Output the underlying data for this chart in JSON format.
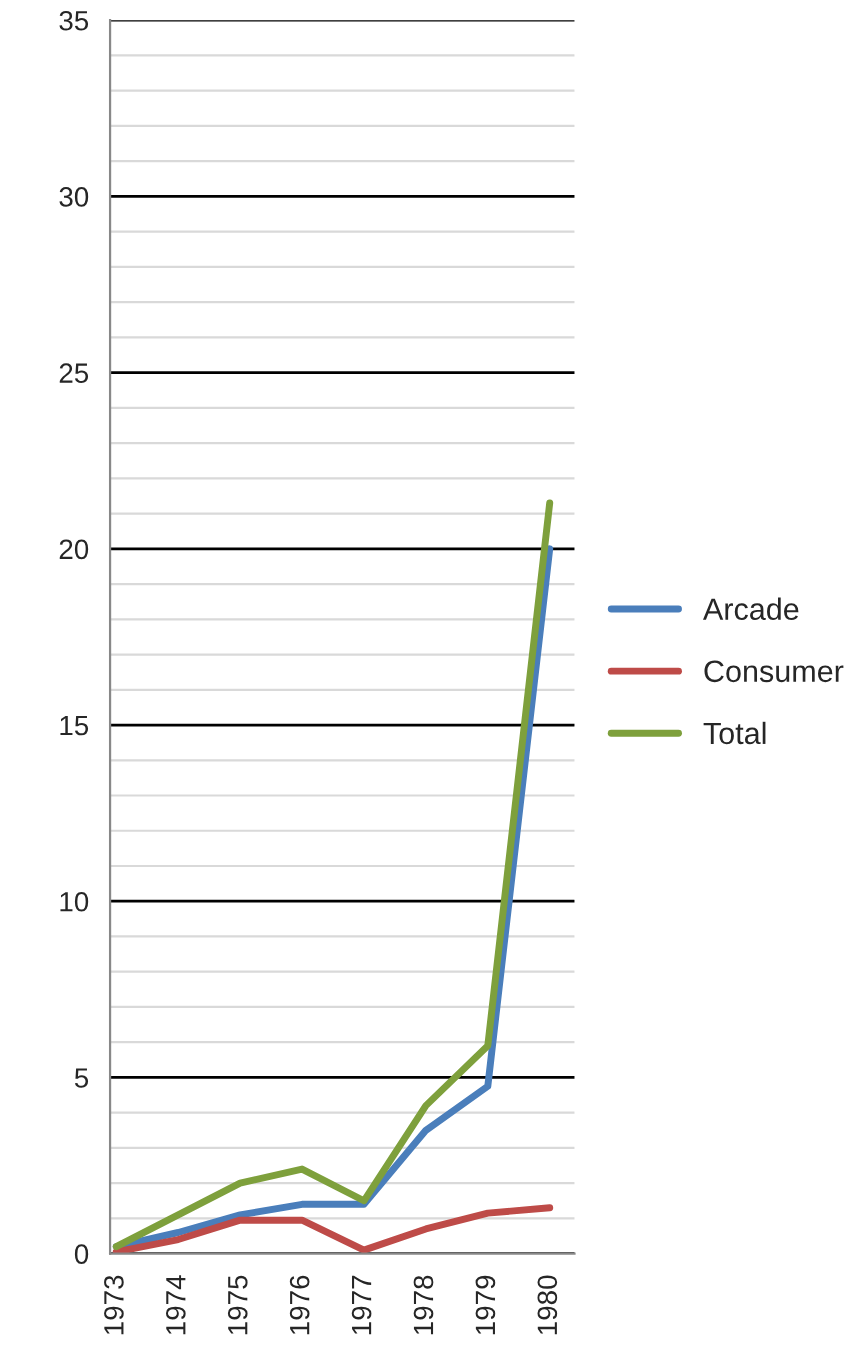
{
  "chart_data": {
    "type": "line",
    "categories": [
      "1973",
      "1974",
      "1975",
      "1976",
      "1977",
      "1978",
      "1979",
      "1980"
    ],
    "series": [
      {
        "name": "Arcade",
        "color": "#4a7ebb",
        "values": [
          0.2,
          0.6,
          1.1,
          1.4,
          1.4,
          3.5,
          4.75,
          20.0
        ]
      },
      {
        "name": "Consumer",
        "color": "#be4b48",
        "values": [
          0.05,
          0.4,
          0.95,
          0.95,
          0.1,
          0.7,
          1.15,
          1.3
        ]
      },
      {
        "name": "Total",
        "color": "#7ea03c",
        "values": [
          0.2,
          1.1,
          2.0,
          2.4,
          1.5,
          4.2,
          5.9,
          21.3
        ]
      }
    ],
    "ylim": [
      0,
      35
    ],
    "yticks": [
      0,
      5,
      10,
      15,
      20,
      25,
      30,
      35
    ],
    "grid": "y",
    "legend": "right",
    "marker": "none",
    "line_style": "solid"
  }
}
